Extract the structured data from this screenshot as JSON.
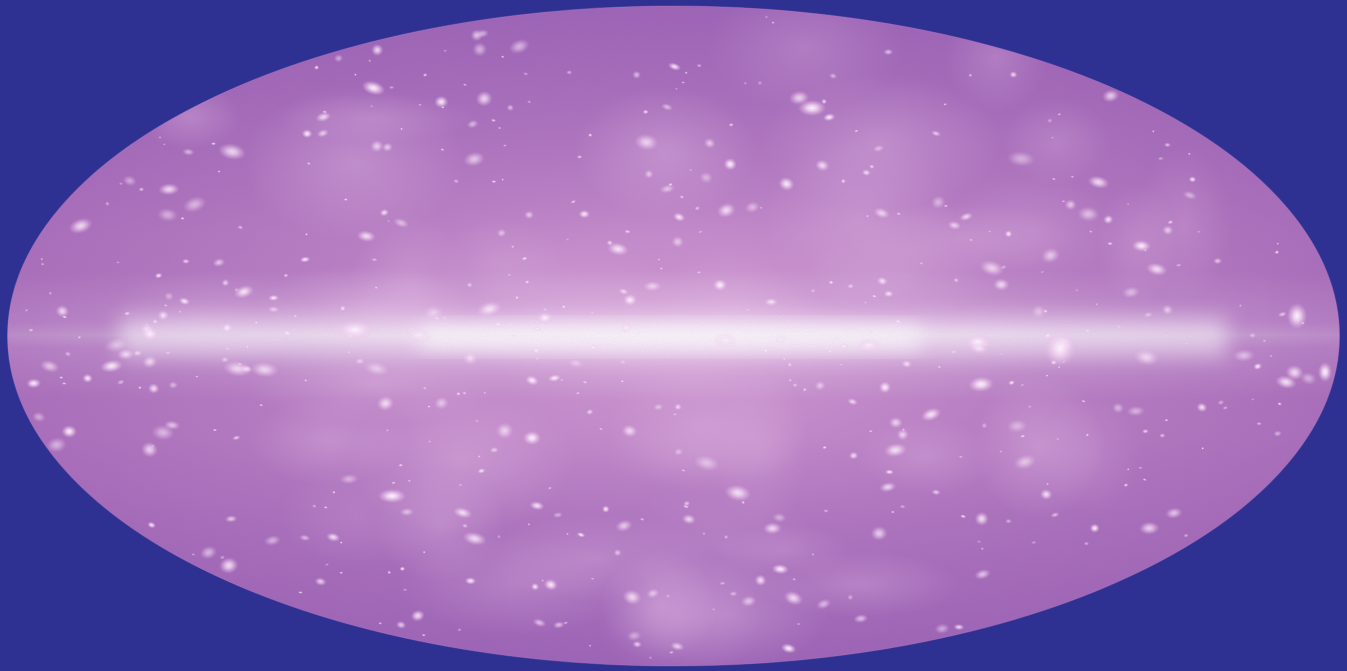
{
  "map": {
    "projection": "mollweide",
    "view": "all-sky",
    "colors": {
      "background": "#2e3192",
      "sky_dim": "#9b63b3",
      "sky_mid": "#c98ac9",
      "sky_bright": "#e7b8e4",
      "plane_core": "#ffffff",
      "source_glow": "#ffe6ff"
    },
    "features": {
      "galactic_plane": "bright-horizontal-band",
      "point_sources": "bright-blobs",
      "bright_clusters": "large-bright-blobs"
    }
  }
}
